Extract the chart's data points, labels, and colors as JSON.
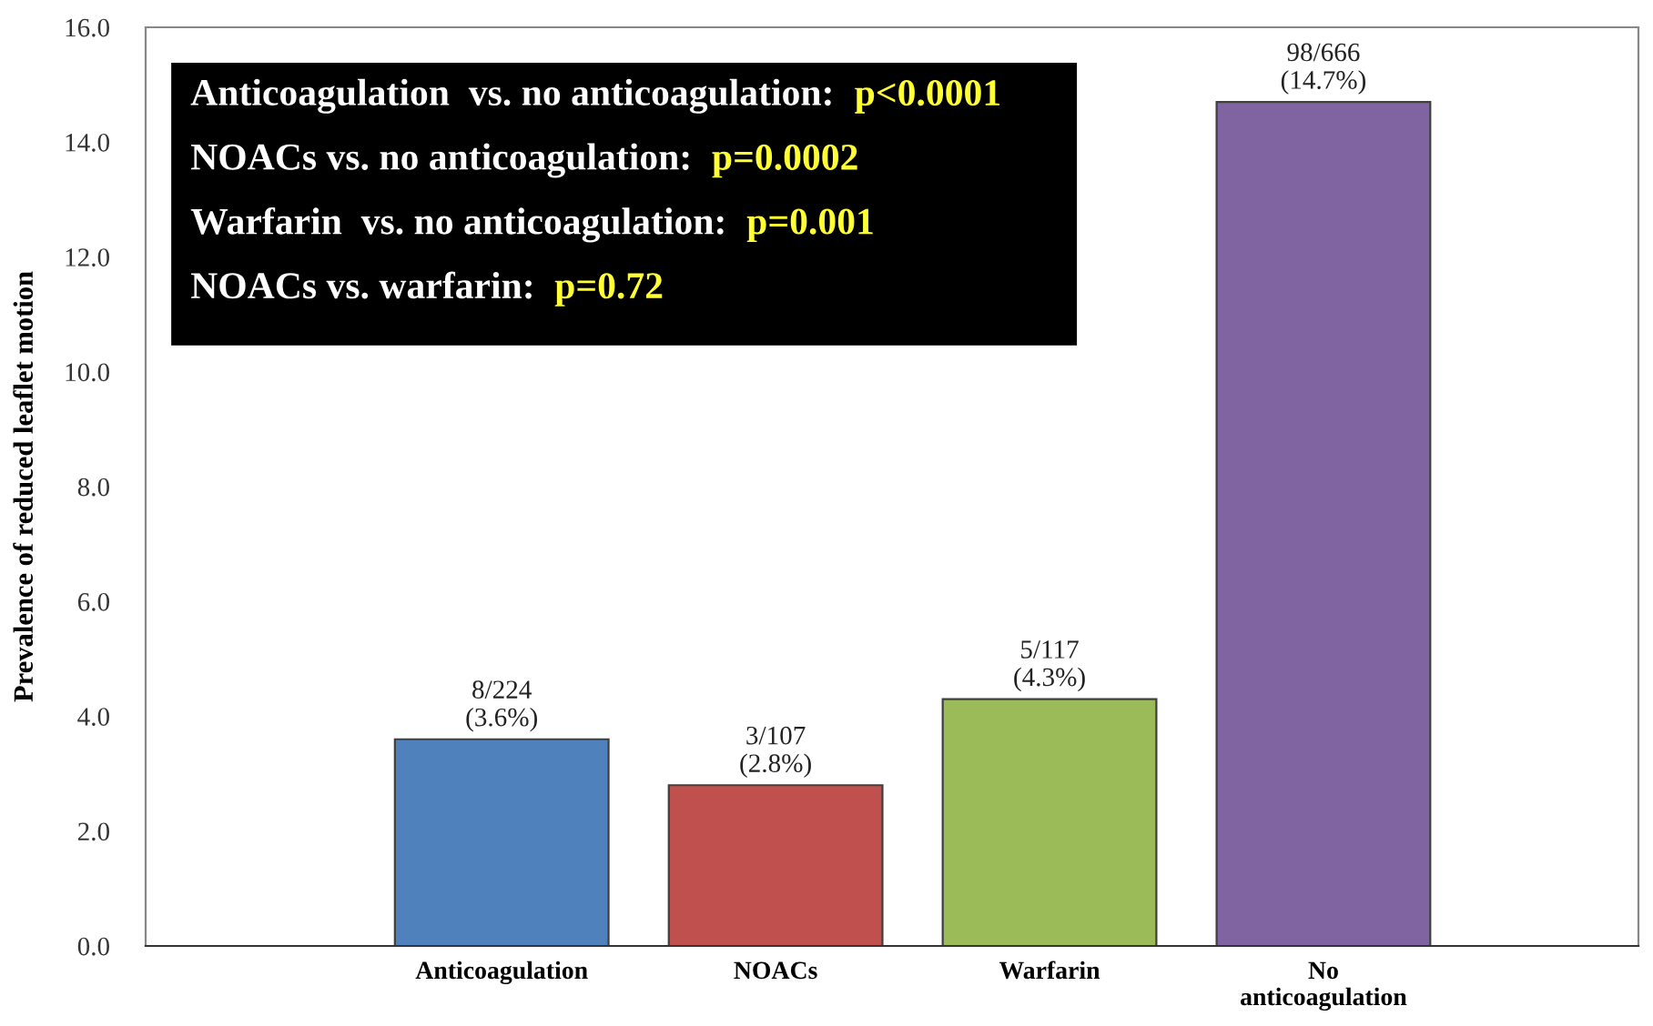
{
  "chart_data": {
    "type": "bar",
    "ylabel": "Prevalence of reduced leaflet motion",
    "categories": [
      "Anticoagulation",
      "NOACs",
      "Warfarin",
      "No\nanticoagulation"
    ],
    "values": [
      3.6,
      2.8,
      4.3,
      14.7
    ],
    "colors": [
      "#4f81bd",
      "#c0504d",
      "#9bbb59",
      "#8064a2"
    ],
    "value_labels": [
      "8/224\n(3.6%)",
      "3/107\n(2.8%)",
      "5/117\n(4.3%)",
      "98/666\n(14.7%)"
    ],
    "ylim": [
      0,
      16
    ],
    "yticks": [
      {
        "value": 0,
        "label": "0.0"
      },
      {
        "value": 2,
        "label": "2.0"
      },
      {
        "value": 4,
        "label": "4.0"
      },
      {
        "value": 6,
        "label": "6.0"
      },
      {
        "value": 8,
        "label": "8.0"
      },
      {
        "value": 10,
        "label": "10.0"
      },
      {
        "value": 12,
        "label": "12.0"
      },
      {
        "value": 14,
        "label": "14.0"
      },
      {
        "value": 16,
        "label": "16.0"
      }
    ],
    "annotations": [
      "Anticoagulation  vs. no anticoagulation:  p<0.0001",
      "NOACs vs. no anticoagulation:  p=0.0002",
      "Warfarin  vs. no anticoagulation:  p=0.001",
      "NOACs vs. warfarin:  p=0.72"
    ],
    "grid": false,
    "legend": false
  }
}
